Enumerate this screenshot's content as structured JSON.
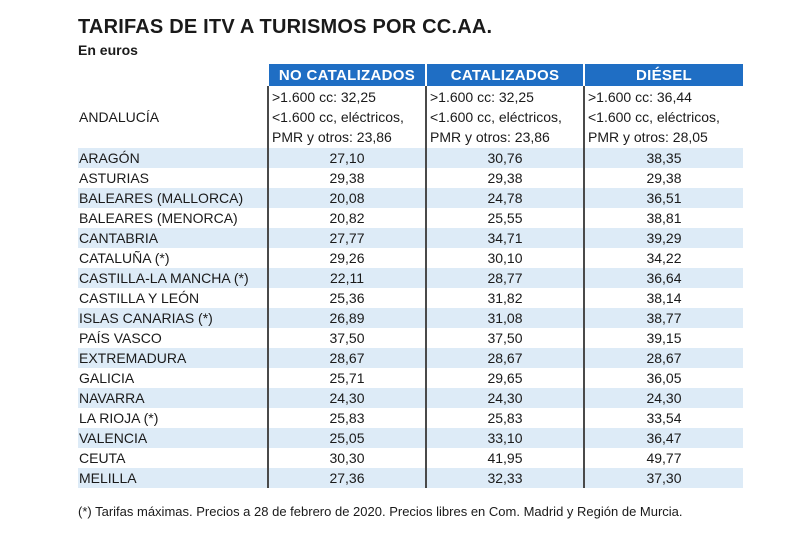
{
  "title": "TARIFAS DE ITV A TURISMOS POR CC.AA.",
  "subtitle": "En euros",
  "footnote": "(*) Tarifas máximas. Precios a 28 de febrero de 2020. Precios libres en Com. Madrid y Región de Murcia.",
  "colors": {
    "header_bg": "#1f6ec4",
    "row_shade": "#ddebf7"
  },
  "chart_data": {
    "type": "table",
    "columns": [
      "NO CATALIZADOS",
      "CATALIZADOS",
      "DIÉSEL"
    ],
    "andalucia": {
      "region": "ANDALUCÍA",
      "cells": [
        [
          ">1.600 cc: 32,25",
          "<1.600 cc, eléctricos,",
          "PMR y otros: 23,86"
        ],
        [
          ">1.600 cc: 32,25",
          "<1.600 cc, eléctricos,",
          "PMR y otros: 23,86"
        ],
        [
          ">1.600 cc: 36,44",
          "<1.600 cc, eléctricos,",
          "PMR y otros: 28,05"
        ]
      ]
    },
    "rows": [
      {
        "region": "ARAGÓN",
        "values": [
          "27,10",
          "30,76",
          "38,35"
        ]
      },
      {
        "region": "ASTURIAS",
        "values": [
          "29,38",
          "29,38",
          "29,38"
        ]
      },
      {
        "region": "BALEARES (MALLORCA)",
        "values": [
          "20,08",
          "24,78",
          "36,51"
        ]
      },
      {
        "region": "BALEARES (MENORCA)",
        "values": [
          "20,82",
          "25,55",
          "38,81"
        ]
      },
      {
        "region": "CANTABRIA",
        "values": [
          "27,77",
          "34,71",
          "39,29"
        ]
      },
      {
        "region": "CATALUÑA (*)",
        "values": [
          "29,26",
          "30,10",
          "34,22"
        ]
      },
      {
        "region": "CASTILLA-LA MANCHA (*)",
        "values": [
          "22,11",
          "28,77",
          "36,64"
        ]
      },
      {
        "region": "CASTILLA Y LEÓN",
        "values": [
          "25,36",
          "31,82",
          "38,14"
        ]
      },
      {
        "region": "ISLAS CANARIAS (*)",
        "values": [
          "26,89",
          "31,08",
          "38,77"
        ]
      },
      {
        "region": "PAÍS VASCO",
        "values": [
          "37,50",
          "37,50",
          "39,15"
        ]
      },
      {
        "region": "EXTREMADURA",
        "values": [
          "28,67",
          "28,67",
          "28,67"
        ]
      },
      {
        "region": "GALICIA",
        "values": [
          "25,71",
          "29,65",
          "36,05"
        ]
      },
      {
        "region": "NAVARRA",
        "values": [
          "24,30",
          "24,30",
          "24,30"
        ]
      },
      {
        "region": "LA RIOJA (*)",
        "values": [
          "25,83",
          "25,83",
          "33,54"
        ]
      },
      {
        "region": "VALENCIA",
        "values": [
          "25,05",
          "33,10",
          "36,47"
        ]
      },
      {
        "region": "CEUTA",
        "values": [
          "30,30",
          "41,95",
          "49,77"
        ]
      },
      {
        "region": "MELILLA",
        "values": [
          "27,36",
          "32,33",
          "37,30"
        ]
      }
    ]
  }
}
